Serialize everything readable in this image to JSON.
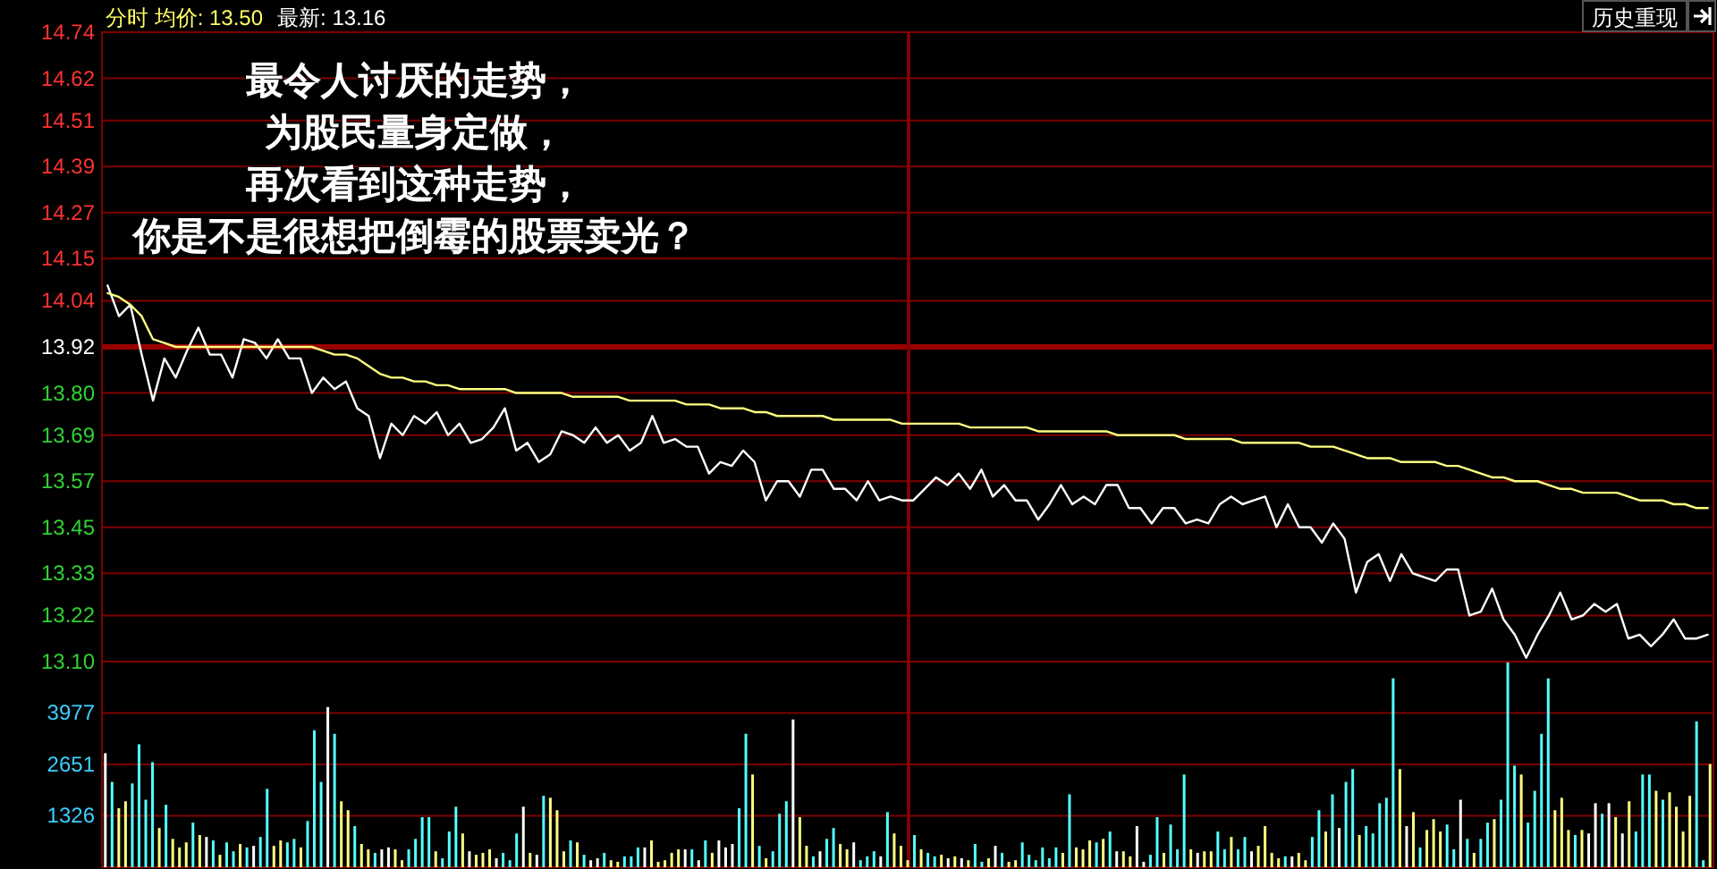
{
  "chart_data": [
    {
      "type": "line",
      "title": "分时 均价: 13.50",
      "subtitle": "最新: 13.16",
      "annotations": [
        "最令人讨厌的走势，",
        "为股民量身定做，",
        "再次看到这种走势，",
        "你是不是很想把倒霉的股票卖光？",
        "历史重现"
      ],
      "categories": [
        null,
        null,
        null,
        null,
        null,
        null,
        null,
        null,
        null,
        null,
        null,
        null,
        null,
        null,
        null,
        null,
        null,
        null,
        null,
        null,
        null,
        null,
        null,
        null,
        null,
        null,
        null,
        null,
        null,
        null,
        null,
        null,
        null,
        null,
        null,
        null,
        null,
        null,
        null,
        null,
        null,
        null,
        null,
        null,
        null,
        null,
        null,
        null,
        null,
        null,
        null,
        null,
        null,
        null,
        null,
        null,
        null,
        null,
        null,
        null,
        null,
        null,
        null,
        null,
        null,
        null,
        null,
        null,
        null,
        null,
        null,
        null,
        null,
        null,
        null,
        null,
        null,
        null,
        null,
        null,
        null,
        null,
        null,
        null,
        null,
        null,
        null,
        null,
        null,
        null,
        null,
        null,
        null,
        null,
        null,
        null,
        null,
        null,
        null,
        null,
        null,
        null,
        null,
        null,
        null,
        null,
        null,
        null,
        null,
        null,
        null,
        null,
        null,
        null,
        null,
        null,
        null,
        null,
        null,
        null,
        null,
        null,
        null,
        null,
        null,
        null,
        null,
        null,
        null,
        null,
        null,
        null,
        null,
        null,
        null,
        null,
        null,
        null,
        null,
        null,
        null,
        null
      ],
      "ylim": [
        13.1,
        14.74
      ],
      "yticks": [
        14.74,
        14.62,
        14.51,
        14.39,
        14.27,
        14.15,
        14.04,
        13.92,
        {
          "value": 13.8,
          "label": "13.80"
        },
        13.69,
        13.57,
        13.45,
        13.33,
        13.22,
        {
          "value": 13.1,
          "label": "13.10"
        }
      ],
      "tick_labels": "y",
      "grid": "y",
      "ref_lines": [
        {
          "axis": "y",
          "value": 13.92,
          "color": "#990000"
        }
      ],
      "series": [
        {
          "color": "#ffffff",
          "values": [
            14.08,
            14.0,
            14.03,
            13.9,
            13.78,
            13.89,
            13.84,
            13.91,
            13.97,
            13.9,
            13.9,
            13.84,
            13.94,
            13.93,
            13.89,
            13.94,
            13.89,
            13.89,
            13.8,
            13.84,
            13.81,
            13.83,
            13.76,
            13.74,
            13.63,
            13.72,
            13.69,
            13.74,
            13.72,
            13.75,
            13.69,
            13.72,
            13.67,
            13.68,
            13.71,
            13.76,
            13.65,
            13.67,
            13.62,
            13.64,
            13.7,
            13.69,
            13.67,
            13.71,
            13.67,
            13.69,
            13.65,
            13.67,
            13.74,
            13.67,
            13.68,
            13.66,
            13.66,
            13.59,
            13.62,
            13.61,
            13.65,
            13.62,
            13.52,
            13.57,
            13.57,
            13.53,
            13.6,
            13.6,
            13.55,
            13.55,
            13.52,
            13.57,
            13.52,
            13.53,
            13.52,
            13.52,
            13.55,
            13.58,
            13.56,
            13.59,
            13.55,
            13.6,
            13.53,
            13.56,
            13.52,
            13.52,
            13.47,
            13.51,
            13.56,
            13.51,
            13.53,
            13.51,
            13.56,
            13.56,
            13.5,
            13.5,
            13.46,
            13.5,
            13.5,
            13.46,
            13.47,
            13.46,
            13.51,
            13.53,
            13.51,
            13.52,
            13.53,
            13.45,
            13.51,
            13.45,
            13.45,
            13.41,
            13.46,
            13.42,
            13.28,
            13.36,
            13.38,
            13.31,
            13.38,
            13.33,
            13.32,
            13.31,
            13.34,
            13.34,
            13.22,
            13.23,
            13.29,
            13.21,
            13.17,
            13.11,
            13.17,
            13.22,
            13.28,
            13.21,
            13.22,
            13.25,
            13.23,
            13.25,
            13.16,
            13.17,
            13.14,
            13.17,
            13.21,
            13.16,
            13.16,
            13.17
          ]
        },
        {
          "color": "#ffff80",
          "values": [
            14.06,
            14.05,
            14.03,
            14.0,
            13.94,
            13.93,
            13.92,
            13.92,
            13.92,
            13.92,
            13.92,
            13.92,
            13.92,
            13.92,
            13.92,
            13.92,
            13.92,
            13.92,
            13.92,
            13.91,
            13.9,
            13.9,
            13.89,
            13.87,
            13.85,
            13.84,
            13.84,
            13.83,
            13.83,
            13.82,
            13.82,
            13.81,
            13.81,
            13.81,
            13.81,
            13.81,
            13.8,
            13.8,
            13.8,
            13.8,
            13.8,
            13.79,
            13.79,
            13.79,
            13.79,
            13.79,
            13.78,
            13.78,
            13.78,
            13.78,
            13.78,
            13.77,
            13.77,
            13.77,
            13.76,
            13.76,
            13.76,
            13.75,
            13.75,
            13.74,
            13.74,
            13.74,
            13.74,
            13.74,
            13.73,
            13.73,
            13.73,
            13.73,
            13.73,
            13.73,
            13.72,
            13.72,
            13.72,
            13.72,
            13.72,
            13.72,
            13.71,
            13.71,
            13.71,
            13.71,
            13.71,
            13.71,
            13.7,
            13.7,
            13.7,
            13.7,
            13.7,
            13.7,
            13.7,
            13.69,
            13.69,
            13.69,
            13.69,
            13.69,
            13.69,
            13.68,
            13.68,
            13.68,
            13.68,
            13.68,
            13.67,
            13.67,
            13.67,
            13.67,
            13.67,
            13.67,
            13.66,
            13.66,
            13.66,
            13.65,
            13.64,
            13.63,
            13.63,
            13.63,
            13.62,
            13.62,
            13.62,
            13.62,
            13.61,
            13.61,
            13.6,
            13.59,
            13.58,
            13.58,
            13.57,
            13.57,
            13.57,
            13.56,
            13.55,
            13.55,
            13.54,
            13.54,
            13.54,
            13.54,
            13.53,
            13.52,
            13.52,
            13.52,
            13.51,
            13.51,
            13.5,
            13.5
          ]
        }
      ]
    },
    {
      "type": "bar",
      "ylim": [
        0,
        5302
      ],
      "yticks": [
        3977,
        2651,
        1326
      ],
      "tick_labels": "y",
      "grid": "y",
      "categories": [
        null,
        null,
        null,
        null,
        null,
        null,
        null,
        null,
        null,
        null,
        null,
        null,
        null,
        null,
        null,
        null,
        null,
        null,
        null,
        null,
        null,
        null,
        null,
        null,
        null,
        null,
        null,
        null,
        null,
        null,
        null,
        null,
        null,
        null,
        null,
        null,
        null,
        null,
        null,
        null,
        null,
        null,
        null,
        null,
        null,
        null,
        null,
        null,
        null,
        null,
        null,
        null,
        null,
        null,
        null,
        null,
        null,
        null,
        null,
        null,
        null,
        null,
        null,
        null,
        null,
        null,
        null,
        null,
        null,
        null,
        null,
        null,
        null,
        null,
        null,
        null,
        null,
        null,
        null,
        null,
        null,
        null,
        null,
        null,
        null,
        null,
        null,
        null,
        null,
        null,
        null,
        null,
        null,
        null,
        null,
        null,
        null,
        null,
        null,
        null,
        null,
        null,
        null,
        null,
        null,
        null,
        null,
        null,
        null,
        null,
        null,
        null,
        null,
        null,
        null,
        null,
        null,
        null,
        null,
        null,
        null,
        null,
        null,
        null,
        null,
        null,
        null,
        null,
        null,
        null,
        null,
        null,
        null,
        null,
        null,
        null,
        null,
        null,
        null,
        null,
        null,
        null,
        null,
        null,
        null,
        null,
        null,
        null,
        null,
        null,
        null,
        null,
        null,
        null,
        null,
        null,
        null,
        null,
        null,
        null,
        null,
        null,
        null,
        null,
        null,
        null,
        null,
        null,
        null,
        null,
        null,
        null,
        null,
        null,
        null,
        null,
        null,
        null,
        null,
        null,
        null,
        null,
        null,
        null,
        null,
        null,
        null,
        null,
        null,
        null,
        null,
        null,
        null,
        null,
        null,
        null,
        null,
        null,
        null,
        null,
        null,
        null,
        null,
        null,
        null,
        null,
        null,
        null,
        null,
        null,
        null,
        null,
        null,
        null,
        null,
        null,
        null,
        null,
        null,
        null,
        null,
        null,
        null,
        null,
        null,
        null,
        null,
        null,
        null,
        null,
        null,
        null,
        null,
        null,
        null,
        null,
        null,
        null,
        null
      ],
      "values": [
        2940,
        2200,
        1520,
        1700,
        2160,
        3170,
        1740,
        2710,
        1010,
        1610,
        730,
        510,
        640,
        1150,
        830,
        780,
        690,
        320,
        640,
        410,
        600,
        510,
        550,
        780,
        2020,
        550,
        690,
        640,
        730,
        510,
        1190,
        3530,
        2200,
        4130,
        3440,
        1700,
        1470,
        1060,
        600,
        460,
        370,
        460,
        510,
        460,
        180,
        460,
        730,
        1290,
        1290,
        410,
        230,
        920,
        1560,
        870,
        410,
        320,
        370,
        460,
        230,
        370,
        180,
        870,
        1560,
        370,
        320,
        1840,
        1790,
        1470,
        410,
        690,
        640,
        320,
        180,
        230,
        370,
        180,
        140,
        280,
        280,
        510,
        510,
        690,
        140,
        180,
        370,
        460,
        460,
        460,
        180,
        690,
        370,
        690,
        510,
        600,
        1520,
        3440,
        2390,
        550,
        230,
        410,
        1380,
        1700,
        3810,
        1290,
        550,
        280,
        410,
        730,
        1010,
        600,
        460,
        640,
        180,
        280,
        410,
        280,
        1420,
        870,
        550,
        180,
        830,
        460,
        370,
        280,
        320,
        230,
        280,
        230,
        180,
        600,
        140,
        230,
        550,
        370,
        140,
        180,
        640,
        320,
        180,
        510,
        230,
        510,
        370,
        1880,
        510,
        460,
        690,
        640,
        730,
        920,
        410,
        410,
        280,
        1060,
        140,
        320,
        1290,
        370,
        1100,
        460,
        2390,
        460,
        370,
        410,
        410,
        920,
        460,
        780,
        460,
        780,
        410,
        550,
        1060,
        370,
        230,
        280,
        280,
        370,
        180,
        780,
        1470,
        920,
        1880,
        1010,
        2200,
        2530,
        830,
        1060,
        870,
        1650,
        1790,
        4870,
        2530,
        1060,
        1420,
        510,
        960,
        1240,
        920,
        1100,
        460,
        1740,
        730,
        370,
        730,
        1150,
        1240,
        1740,
        5280,
        2620,
        2390,
        1150,
        1970,
        3440,
        4870,
        1470,
        1790,
        960,
        830,
        960,
        870,
        1650,
        1380,
        1650,
        1290,
        870,
        1700,
        920,
        2390,
        2390,
        1970,
        1740,
        1930,
        1560,
        920,
        1840,
        3760,
        180,
        2660
      ],
      "colors": [
        "#ffffff",
        "#55ffff",
        "#ffff80",
        "#ffff80",
        "#55ffff",
        "#55ffff",
        "#55ffff",
        "#55ffff",
        "#ffff80",
        "#55ffff",
        "#ffff80",
        "#ffff80",
        "#ffff80",
        "#55ffff",
        "#ffff80",
        "#ffffff",
        "#55ffff",
        "#ffff80",
        "#55ffff",
        "#55ffff",
        "#ffff80",
        "#55ffff",
        "#ffffff",
        "#55ffff",
        "#55ffff",
        "#ffff80",
        "#ffff80",
        "#55ffff",
        "#55ffff",
        "#ffff80",
        "#55ffff",
        "#55ffff",
        "#55ffff",
        "#ffffff",
        "#55ffff",
        "#ffff80",
        "#ffff80",
        "#55ffff",
        "#ffff80",
        "#ffff80",
        "#55ffff",
        "#ffffff",
        "#ffffff",
        "#ffff80",
        "#ffff80",
        "#55ffff",
        "#55ffff",
        "#55ffff",
        "#55ffff",
        "#ffff80",
        "#55ffff",
        "#55ffff",
        "#55ffff",
        "#ffff80",
        "#ffffff",
        "#ffff80",
        "#ffff80",
        "#ffff80",
        "#ffffff",
        "#55ffff",
        "#55ffff",
        "#55ffff",
        "#ffffff",
        "#ffff80",
        "#ffffff",
        "#55ffff",
        "#ffff80",
        "#ffff80",
        "#ffff80",
        "#55ffff",
        "#ffff80",
        "#55ffff",
        "#ffffff",
        "#ffffff",
        "#55ffff",
        "#ffff80",
        "#ffff80",
        "#55ffff",
        "#55ffff",
        "#55ffff",
        "#ffffff",
        "#ffff80",
        "#ffff80",
        "#ffff80",
        "#ffff80",
        "#ffff80",
        "#ffffff",
        "#55ffff",
        "#ffffff",
        "#55ffff",
        "#ffff80",
        "#ffffff",
        "#ffffff",
        "#ffffff",
        "#55ffff",
        "#55ffff",
        "#ffff80",
        "#55ffff",
        "#ffff80",
        "#55ffff",
        "#55ffff",
        "#55ffff",
        "#ffffff",
        "#ffff80",
        "#ffff80",
        "#55ffff",
        "#ffffff",
        "#55ffff",
        "#55ffff",
        "#ffff80",
        "#ffff80",
        "#ffffff",
        "#55ffff",
        "#55ffff",
        "#55ffff",
        "#ffffff",
        "#55ffff",
        "#ffff80",
        "#ffff80",
        "#ffff80",
        "#55ffff",
        "#ffff80",
        "#55ffff",
        "#55ffff",
        "#ffff80",
        "#ffffff",
        "#ffff80",
        "#ffffff",
        "#ffff80",
        "#55ffff",
        "#55ffff",
        "#ffff80",
        "#ffffff",
        "#55ffff",
        "#ffff80",
        "#ffff80",
        "#55ffff",
        "#55ffff",
        "#55ffff",
        "#55ffff",
        "#55ffff",
        "#55ffff",
        "#ffff80",
        "#55ffff",
        "#ffff80",
        "#ffff80",
        "#ffff80",
        "#55ffff",
        "#ffff80",
        "#55ffff",
        "#ffffff",
        "#ffff80",
        "#ffff80",
        "#ffffff",
        "#ffffff",
        "#55ffff",
        "#55ffff",
        "#ffff80",
        "#55ffff",
        "#55ffff",
        "#55ffff",
        "#ffff80",
        "#ffffff",
        "#ffff80",
        "#ffff80",
        "#55ffff",
        "#55ffff",
        "#ffff80",
        "#55ffff",
        "#55ffff",
        "#ffffff",
        "#ffff80",
        "#ffff80",
        "#ffff80",
        "#ffff80",
        "#55ffff",
        "#ffffff",
        "#ffff80",
        "#ffff80",
        "#55ffff",
        "#55ffff",
        "#ffff80",
        "#55ffff",
        "#ffffff",
        "#55ffff",
        "#55ffff",
        "#ffff80",
        "#55ffff",
        "#55ffff",
        "#55ffff",
        "#55ffff",
        "#55ffff",
        "#ffff80",
        "#ffffff",
        "#ffff80",
        "#55ffff",
        "#ffff80",
        "#ffff80",
        "#ffff80",
        "#55ffff",
        "#55ffff",
        "#ffffff",
        "#55ffff",
        "#ffff80",
        "#55ffff",
        "#55ffff",
        "#ffff80",
        "#55ffff",
        "#55ffff",
        "#55ffff",
        "#ffff80",
        "#55ffff",
        "#55ffff",
        "#55ffff",
        "#55ffff",
        "#ffff80",
        "#ffff80",
        "#ffff80",
        "#55ffff",
        "#ffff80",
        "#ffffff",
        "#ffffff",
        "#55ffff",
        "#ffffff",
        "#ffff80",
        "#ffffff",
        "#ffff80",
        "#55ffff",
        "#55ffff",
        "#55ffff",
        "#ffff80",
        "#55ffff",
        "#ffff80",
        "#ffff80",
        "#ffff80",
        "#ffff80",
        "#55ffff",
        "#55ffff",
        "#ffff80"
      ]
    }
  ]
}
